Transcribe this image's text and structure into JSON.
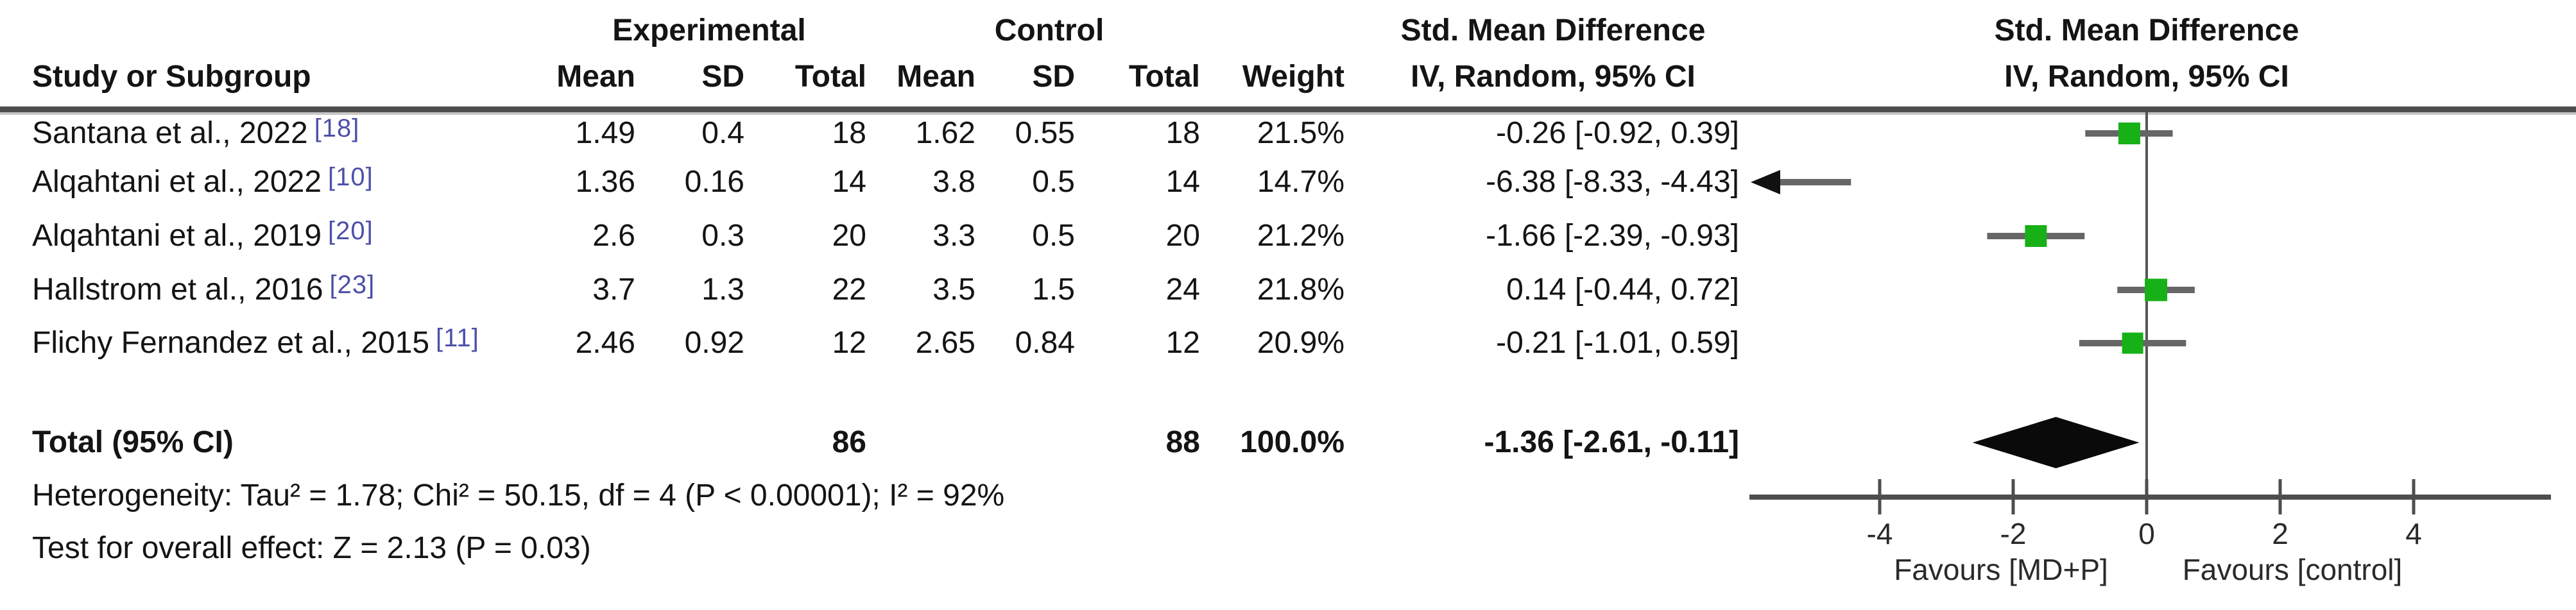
{
  "header": {
    "study_col": "Study or Subgroup",
    "experimental": "Experimental",
    "control": "Control",
    "mean": "Mean",
    "sd": "SD",
    "total": "Total",
    "weight": "Weight",
    "smd_line1": "Std. Mean Difference",
    "smd_line2": "IV, Random, 95% CI",
    "plot_line1": "Std. Mean Difference",
    "plot_line2": "IV, Random, 95% CI"
  },
  "chart_data": {
    "type": "scatter",
    "subtype": "forest_plot_random_effects",
    "effect_measure": "Std. Mean Difference, IV, Random, 95% CI",
    "x_ticks": [
      -4,
      -2,
      0,
      2,
      4
    ],
    "x_range": [
      -6.0,
      6.0
    ],
    "favours_left": "Favours [MD+P]",
    "favours_right": "Favours [control]",
    "studies": [
      {
        "name": "Santana et al., 2022",
        "ref": "[18]",
        "exp_mean": "1.49",
        "exp_sd": "0.4",
        "exp_total": "18",
        "ctl_mean": "1.62",
        "ctl_sd": "0.55",
        "ctl_total": "18",
        "weight": "21.5%",
        "ci_text": "-0.26 [-0.92, 0.39]",
        "est": -0.26,
        "lo": -0.92,
        "hi": 0.39,
        "weight_pct": 21.5
      },
      {
        "name": "Alqahtani et al., 2022",
        "ref": "[10]",
        "exp_mean": "1.36",
        "exp_sd": "0.16",
        "exp_total": "14",
        "ctl_mean": "3.8",
        "ctl_sd": "0.5",
        "ctl_total": "14",
        "weight": "14.7%",
        "ci_text": "-6.38 [-8.33, -4.43]",
        "est": -6.38,
        "lo": -8.33,
        "hi": -4.43,
        "weight_pct": 14.7
      },
      {
        "name": "Alqahtani et al., 2019",
        "ref": "[20]",
        "exp_mean": "2.6",
        "exp_sd": "0.3",
        "exp_total": "20",
        "ctl_mean": "3.3",
        "ctl_sd": "0.5",
        "ctl_total": "20",
        "weight": "21.2%",
        "ci_text": "-1.66 [-2.39, -0.93]",
        "est": -1.66,
        "lo": -2.39,
        "hi": -0.93,
        "weight_pct": 21.2
      },
      {
        "name": "Hallstrom et al., 2016",
        "ref": "[23]",
        "exp_mean": "3.7",
        "exp_sd": "1.3",
        "exp_total": "22",
        "ctl_mean": "3.5",
        "ctl_sd": "1.5",
        "ctl_total": "24",
        "weight": "21.8%",
        "ci_text": "0.14 [-0.44, 0.72]",
        "est": 0.14,
        "lo": -0.44,
        "hi": 0.72,
        "weight_pct": 21.8
      },
      {
        "name": "Flichy Fernandez et al., 2015",
        "ref": "[11]",
        "exp_mean": "2.46",
        "exp_sd": "0.92",
        "exp_total": "12",
        "ctl_mean": "2.65",
        "ctl_sd": "0.84",
        "ctl_total": "12",
        "weight": "20.9%",
        "ci_text": "-0.21 [-1.01, 0.59]",
        "est": -0.21,
        "lo": -1.01,
        "hi": 0.59,
        "weight_pct": 20.9
      }
    ],
    "total": {
      "label": "Total (95% CI)",
      "exp_total": "86",
      "ctl_total": "88",
      "weight": "100.0%",
      "ci_text": "-1.36 [-2.61, -0.11]",
      "est": -1.36,
      "lo": -2.61,
      "hi": -0.11
    }
  },
  "footer": {
    "heterogeneity": "Heterogeneity: Tau² = 1.78; Chi² = 50.15, df = 4 (P < 0.00001); I² = 92%",
    "overall_effect": "Test for overall effect: Z = 2.13 (P = 0.03)"
  },
  "colors": {
    "marker_green": "#17b117",
    "ci_line_gray": "#666666",
    "axis_gray": "#4d4d4d",
    "diamond_black": "#0a0a0a",
    "ref_blue": "#4d50a8"
  }
}
